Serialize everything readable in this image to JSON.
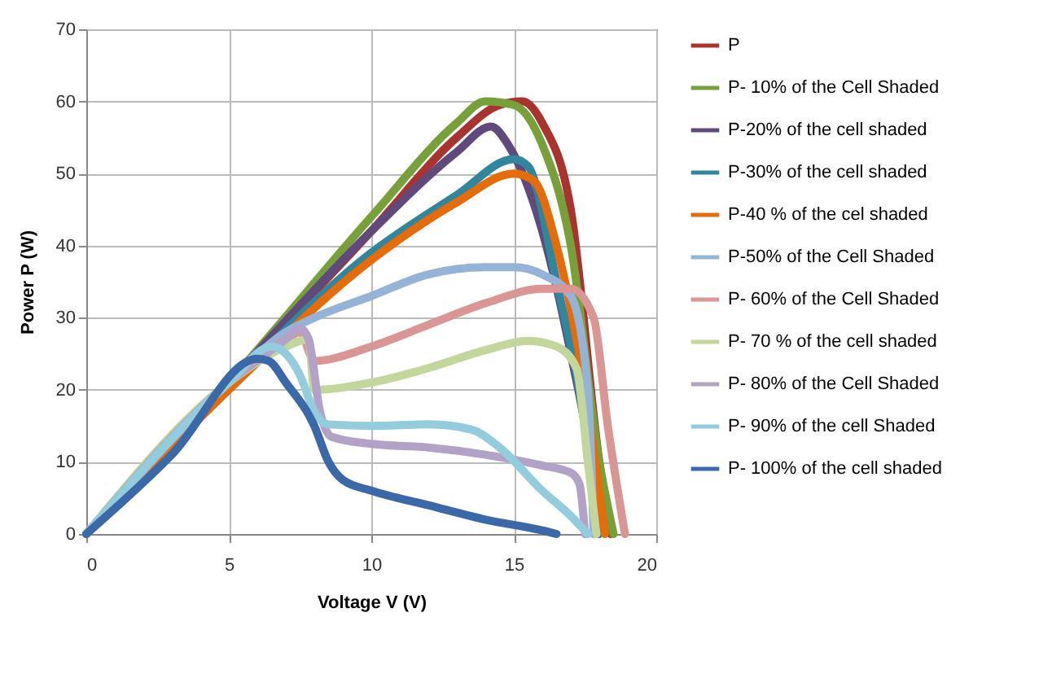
{
  "chart_data": {
    "type": "line",
    "xlabel": "Voltage V (V)",
    "ylabel": "Power P (W)",
    "xlim": [
      0,
      20
    ],
    "xticks": [
      0,
      5,
      10,
      15,
      20
    ],
    "ylim": [
      0,
      70
    ],
    "yticks": [
      0,
      10,
      20,
      30,
      40,
      50,
      60,
      70
    ],
    "grid": true,
    "legend": "right",
    "marker": "none",
    "line_style": "solid",
    "series": [
      {
        "name": "P",
        "color": "#a9332f",
        "x": [
          0,
          5,
          10,
          13,
          14.5,
          15.3,
          16,
          17,
          18,
          18.4
        ],
        "values": [
          0,
          21,
          42,
          55,
          59.5,
          60,
          57,
          45,
          10,
          0
        ]
      },
      {
        "name": "P- 10% of the Cell Shaded",
        "color": "#77a03a",
        "x": [
          0,
          5,
          10,
          13,
          14,
          15,
          16,
          17,
          18,
          18.5
        ],
        "values": [
          0,
          21,
          44,
          57,
          60,
          59.5,
          54,
          40,
          10,
          0
        ]
      },
      {
        "name": "P-20% of the cell shaded",
        "color": "#604a7b",
        "x": [
          0,
          5,
          10,
          13,
          14.2,
          14.8,
          16,
          17,
          17.7,
          18
        ],
        "values": [
          0,
          21,
          42,
          53,
          56.5,
          54,
          42,
          25,
          10,
          0
        ]
      },
      {
        "name": "P-30% of the cell shaded",
        "color": "#31859c",
        "x": [
          0,
          5,
          10,
          13,
          15,
          15.5,
          16.5,
          17.5,
          18
        ],
        "values": [
          0,
          20.5,
          39,
          47,
          52,
          51,
          35,
          15,
          0
        ]
      },
      {
        "name": "P-40 % of the cel shaded",
        "color": "#e46c0a",
        "x": [
          0,
          5,
          10,
          13,
          15,
          15.7,
          16.5,
          17.5,
          18.2
        ],
        "values": [
          0,
          20,
          38,
          46,
          50,
          49,
          40,
          20,
          0
        ]
      },
      {
        "name": "P-50% of the Cell Shaded",
        "color": "#95b3d7",
        "x": [
          0,
          5,
          7,
          8,
          10,
          12,
          14,
          15,
          16,
          17,
          17.6,
          17.8
        ],
        "values": [
          0,
          21,
          28,
          30,
          33,
          36,
          37,
          37,
          36,
          33,
          20,
          0
        ]
      },
      {
        "name": "P- 60% of the Cell Shaded",
        "color": "#d99694",
        "x": [
          0,
          5,
          7,
          7.5,
          8,
          10,
          12,
          14,
          16,
          17,
          17.8,
          18.3,
          18.9
        ],
        "values": [
          0,
          21,
          27,
          28,
          24,
          26,
          29,
          32,
          34,
          34,
          30,
          15,
          0
        ]
      },
      {
        "name": "P- 70 % of the cell shaded",
        "color": "#c3d69b",
        "x": [
          0,
          5,
          7,
          7.8,
          8,
          10,
          12,
          14,
          15.5,
          16.5,
          17.2,
          17.6,
          17.9
        ],
        "values": [
          0,
          21,
          26,
          27,
          20,
          21,
          23,
          25.5,
          26.8,
          26,
          23,
          10,
          0
        ]
      },
      {
        "name": "P- 80% of the Cell Shaded",
        "color": "#b3a2c7",
        "x": [
          0,
          5,
          7,
          7.5,
          7.8,
          8.2,
          8.6,
          10,
          12,
          14,
          16,
          17,
          17.3,
          17.5
        ],
        "values": [
          0,
          21,
          27,
          28.5,
          27,
          17,
          13.5,
          12.5,
          12,
          11,
          9.5,
          8.5,
          7,
          0
        ]
      },
      {
        "name": "P- 90% of the cell Shaded",
        "color": "#93cddd",
        "x": [
          0,
          5,
          6.5,
          7,
          7.5,
          8,
          8.5,
          10,
          12,
          13.5,
          14.5,
          16,
          17,
          17.6
        ],
        "values": [
          0,
          21,
          26,
          25,
          22,
          17,
          15.2,
          15,
          15.2,
          14.5,
          12,
          6,
          2.5,
          0
        ]
      },
      {
        "name": "P- 100% of the cell shaded",
        "color": "#3b68a8",
        "x": [
          0,
          3,
          6,
          6.4,
          7,
          8,
          8.5,
          9,
          10,
          12,
          14,
          16,
          16.5
        ],
        "values": [
          0,
          11,
          24.3,
          24,
          21,
          15,
          10,
          7.5,
          6,
          4,
          2,
          0.5,
          0
        ]
      }
    ]
  }
}
